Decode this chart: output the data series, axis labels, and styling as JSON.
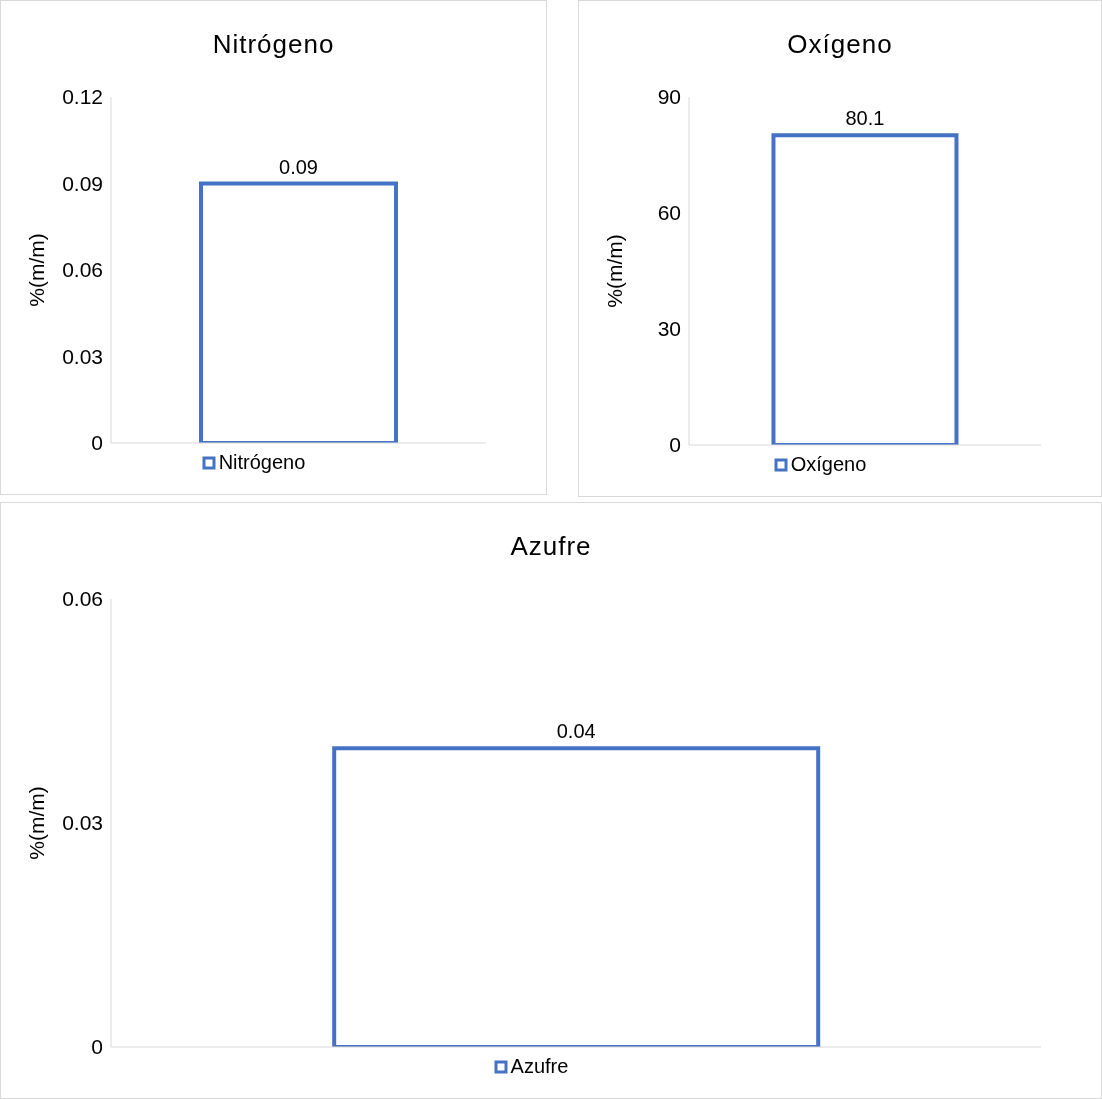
{
  "chart_data": [
    {
      "type": "bar",
      "title": "Nitrógeno",
      "ylabel": "%(m/m)",
      "categories": [
        null
      ],
      "series": [
        {
          "name": "Nitrógeno",
          "color": "#4472c4",
          "values": [
            0.09
          ]
        }
      ],
      "ylim": [
        0,
        0.12
      ],
      "yticks": [
        0,
        0.03,
        0.06,
        0.09,
        0.12
      ],
      "legend": "bottom",
      "data_labels": true,
      "tick_labels": "y"
    },
    {
      "type": "bar",
      "title": "Oxígeno",
      "ylabel": "%(m/m)",
      "categories": [
        null
      ],
      "series": [
        {
          "name": "Oxígeno",
          "color": "#4472c4",
          "values": [
            80.1
          ]
        }
      ],
      "ylim": [
        0,
        90
      ],
      "yticks": [
        0,
        30,
        60,
        90
      ],
      "legend": "bottom",
      "data_labels": true,
      "tick_labels": "y"
    },
    {
      "type": "bar",
      "title": "Azufre",
      "ylabel": "%(m/m)",
      "categories": [
        null
      ],
      "series": [
        {
          "name": "Azufre",
          "color": "#4472c4",
          "values": [
            0.04
          ]
        }
      ],
      "ylim": [
        0,
        0.06
      ],
      "yticks": [
        0,
        0.03,
        0.06
      ],
      "legend": "bottom",
      "data_labels": true,
      "tick_labels": "y"
    }
  ]
}
